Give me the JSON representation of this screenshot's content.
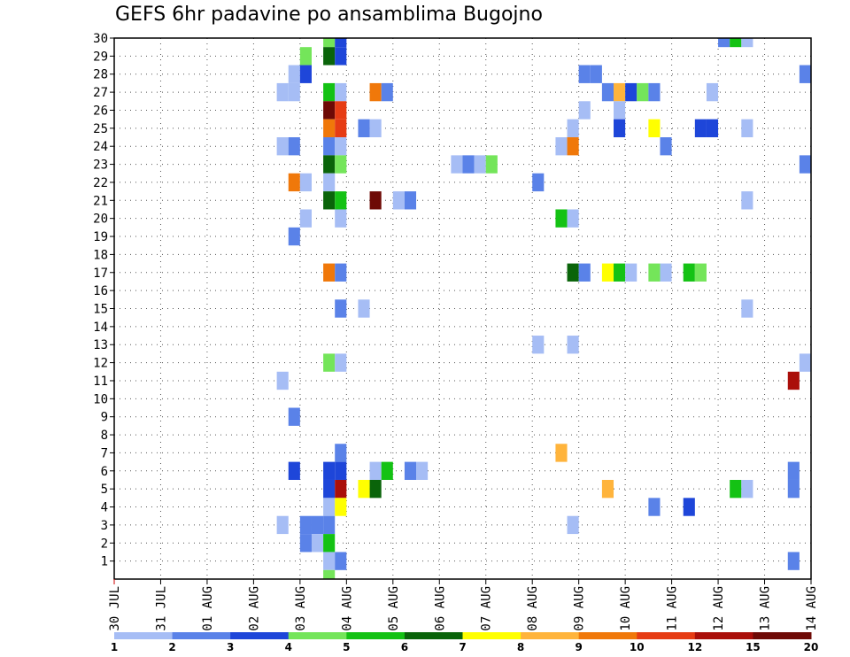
{
  "chart_data": {
    "type": "heatmap",
    "title": "GEFS 6hr padavine po ansamblima Bugojno",
    "xlabel": "",
    "ylabel": "",
    "x_tick_labels": [
      "30 JUL",
      "31 JUL",
      "01 AUG",
      "02 AUG",
      "03 AUG",
      "04 AUG",
      "05 AUG",
      "06 AUG",
      "07 AUG",
      "08 AUG",
      "09 AUG",
      "10 AUG",
      "11 AUG",
      "12 AUG",
      "13 AUG",
      "14 AUG"
    ],
    "y_tick_labels": [
      "1",
      "2",
      "3",
      "4",
      "5",
      "6",
      "7",
      "8",
      "9",
      "10",
      "11",
      "12",
      "13",
      "14",
      "15",
      "16",
      "17",
      "18",
      "19",
      "20",
      "21",
      "22",
      "23",
      "24",
      "25",
      "26",
      "27",
      "28",
      "29",
      "30"
    ],
    "x_range_days": [
      0,
      15
    ],
    "y_range": [
      0,
      30
    ],
    "grid": true,
    "legend_placement": "bottom",
    "colorbar": {
      "labels": [
        "1",
        "2",
        "3",
        "4",
        "5",
        "6",
        "7",
        "8",
        "9",
        "10",
        "12",
        "15",
        "20"
      ],
      "colors": [
        "#a6bdf5",
        "#5a82e8",
        "#1e46d9",
        "#74e55a",
        "#14c214",
        "#0a640a",
        "#ffff00",
        "#ffb43c",
        "#f0780a",
        "#e63c14",
        "#aa0f0a",
        "#6e0a06"
      ]
    },
    "cells_note": "member = ensemble member (y), t = forecast time in days since 30 JUL 00Z, c = colorbar class index",
    "cells": [
      {
        "member": 30,
        "t": 4.75,
        "c": 3
      },
      {
        "member": 30,
        "t": 5.0,
        "c": 2
      },
      {
        "member": 30,
        "t": 13.25,
        "c": 1
      },
      {
        "member": 30,
        "t": 13.5,
        "c": 4
      },
      {
        "member": 30,
        "t": 13.75,
        "c": 0
      },
      {
        "member": 29,
        "t": 4.25,
        "c": 3
      },
      {
        "member": 29,
        "t": 4.75,
        "c": 5
      },
      {
        "member": 29,
        "t": 5.0,
        "c": 2
      },
      {
        "member": 28,
        "t": 4.0,
        "c": 0
      },
      {
        "member": 28,
        "t": 4.25,
        "c": 2
      },
      {
        "member": 28,
        "t": 10.25,
        "c": 1
      },
      {
        "member": 28,
        "t": 10.5,
        "c": 1
      },
      {
        "member": 28,
        "t": 15.0,
        "c": 1
      },
      {
        "member": 27,
        "t": 3.75,
        "c": 0
      },
      {
        "member": 27,
        "t": 4.0,
        "c": 0
      },
      {
        "member": 27,
        "t": 4.75,
        "c": 4
      },
      {
        "member": 27,
        "t": 5.0,
        "c": 0
      },
      {
        "member": 27,
        "t": 5.75,
        "c": 8
      },
      {
        "member": 27,
        "t": 6.0,
        "c": 1
      },
      {
        "member": 27,
        "t": 10.75,
        "c": 1
      },
      {
        "member": 27,
        "t": 11.0,
        "c": 7
      },
      {
        "member": 27,
        "t": 11.25,
        "c": 2
      },
      {
        "member": 27,
        "t": 11.5,
        "c": 3
      },
      {
        "member": 27,
        "t": 11.75,
        "c": 1
      },
      {
        "member": 27,
        "t": 13.0,
        "c": 0
      },
      {
        "member": 26,
        "t": 4.75,
        "c": 11
      },
      {
        "member": 26,
        "t": 5.0,
        "c": 9
      },
      {
        "member": 26,
        "t": 10.25,
        "c": 0
      },
      {
        "member": 26,
        "t": 11.0,
        "c": 0
      },
      {
        "member": 25,
        "t": 4.75,
        "c": 8
      },
      {
        "member": 25,
        "t": 5.0,
        "c": 9
      },
      {
        "member": 25,
        "t": 5.5,
        "c": 1
      },
      {
        "member": 25,
        "t": 5.75,
        "c": 0
      },
      {
        "member": 25,
        "t": 10.0,
        "c": 0
      },
      {
        "member": 25,
        "t": 11.0,
        "c": 2
      },
      {
        "member": 25,
        "t": 11.75,
        "c": 6
      },
      {
        "member": 25,
        "t": 12.75,
        "c": 2
      },
      {
        "member": 25,
        "t": 13.0,
        "c": 2
      },
      {
        "member": 25,
        "t": 13.75,
        "c": 0
      },
      {
        "member": 24,
        "t": 3.75,
        "c": 0
      },
      {
        "member": 24,
        "t": 4.0,
        "c": 1
      },
      {
        "member": 24,
        "t": 4.75,
        "c": 1
      },
      {
        "member": 24,
        "t": 5.0,
        "c": 0
      },
      {
        "member": 24,
        "t": 9.75,
        "c": 0
      },
      {
        "member": 24,
        "t": 10.0,
        "c": 8
      },
      {
        "member": 24,
        "t": 12.0,
        "c": 1
      },
      {
        "member": 23,
        "t": 4.75,
        "c": 5
      },
      {
        "member": 23,
        "t": 5.0,
        "c": 3
      },
      {
        "member": 23,
        "t": 7.5,
        "c": 0
      },
      {
        "member": 23,
        "t": 7.75,
        "c": 1
      },
      {
        "member": 23,
        "t": 8.0,
        "c": 0
      },
      {
        "member": 23,
        "t": 8.25,
        "c": 3
      },
      {
        "member": 23,
        "t": 15.0,
        "c": 1
      },
      {
        "member": 22,
        "t": 4.0,
        "c": 8
      },
      {
        "member": 22,
        "t": 4.25,
        "c": 0
      },
      {
        "member": 22,
        "t": 4.75,
        "c": 0
      },
      {
        "member": 22,
        "t": 9.25,
        "c": 1
      },
      {
        "member": 21,
        "t": 4.75,
        "c": 5
      },
      {
        "member": 21,
        "t": 5.0,
        "c": 4
      },
      {
        "member": 21,
        "t": 5.75,
        "c": 11
      },
      {
        "member": 21,
        "t": 6.25,
        "c": 0
      },
      {
        "member": 21,
        "t": 6.5,
        "c": 1
      },
      {
        "member": 21,
        "t": 13.75,
        "c": 0
      },
      {
        "member": 20,
        "t": 4.25,
        "c": 0
      },
      {
        "member": 20,
        "t": 5.0,
        "c": 0
      },
      {
        "member": 20,
        "t": 9.75,
        "c": 4
      },
      {
        "member": 20,
        "t": 10.0,
        "c": 0
      },
      {
        "member": 19,
        "t": 4.0,
        "c": 1
      },
      {
        "member": 17,
        "t": 4.75,
        "c": 8
      },
      {
        "member": 17,
        "t": 5.0,
        "c": 1
      },
      {
        "member": 17,
        "t": 10.0,
        "c": 5
      },
      {
        "member": 17,
        "t": 10.25,
        "c": 1
      },
      {
        "member": 17,
        "t": 10.75,
        "c": 6
      },
      {
        "member": 17,
        "t": 11.0,
        "c": 4
      },
      {
        "member": 17,
        "t": 11.25,
        "c": 0
      },
      {
        "member": 17,
        "t": 11.75,
        "c": 3
      },
      {
        "member": 17,
        "t": 12.0,
        "c": 0
      },
      {
        "member": 17,
        "t": 12.5,
        "c": 4
      },
      {
        "member": 17,
        "t": 12.75,
        "c": 3
      },
      {
        "member": 15,
        "t": 5.0,
        "c": 1
      },
      {
        "member": 15,
        "t": 5.5,
        "c": 0
      },
      {
        "member": 15,
        "t": 13.75,
        "c": 0
      },
      {
        "member": 13,
        "t": 9.25,
        "c": 0
      },
      {
        "member": 13,
        "t": 10.0,
        "c": 0
      },
      {
        "member": 12,
        "t": 4.75,
        "c": 3
      },
      {
        "member": 12,
        "t": 5.0,
        "c": 0
      },
      {
        "member": 12,
        "t": 15.0,
        "c": 0
      },
      {
        "member": 11,
        "t": 3.75,
        "c": 0
      },
      {
        "member": 11,
        "t": 14.75,
        "c": 10
      },
      {
        "member": 9,
        "t": 4.0,
        "c": 1
      },
      {
        "member": 7,
        "t": 5.0,
        "c": 1
      },
      {
        "member": 7,
        "t": 9.75,
        "c": 7
      },
      {
        "member": 6,
        "t": 4.0,
        "c": 2
      },
      {
        "member": 6,
        "t": 4.75,
        "c": 2
      },
      {
        "member": 6,
        "t": 5.0,
        "c": 2
      },
      {
        "member": 6,
        "t": 5.75,
        "c": 0
      },
      {
        "member": 6,
        "t": 6.0,
        "c": 4
      },
      {
        "member": 6,
        "t": 6.5,
        "c": 1
      },
      {
        "member": 6,
        "t": 6.75,
        "c": 0
      },
      {
        "member": 6,
        "t": 14.75,
        "c": 1
      },
      {
        "member": 5,
        "t": 4.75,
        "c": 2
      },
      {
        "member": 5,
        "t": 5.0,
        "c": 10
      },
      {
        "member": 5,
        "t": 5.5,
        "c": 6
      },
      {
        "member": 5,
        "t": 5.75,
        "c": 5
      },
      {
        "member": 5,
        "t": 10.75,
        "c": 7
      },
      {
        "member": 5,
        "t": 13.5,
        "c": 4
      },
      {
        "member": 5,
        "t": 13.75,
        "c": 0
      },
      {
        "member": 5,
        "t": 14.75,
        "c": 1
      },
      {
        "member": 4,
        "t": 4.75,
        "c": 0
      },
      {
        "member": 4,
        "t": 5.0,
        "c": 6
      },
      {
        "member": 4,
        "t": 11.75,
        "c": 1
      },
      {
        "member": 4,
        "t": 12.5,
        "c": 2
      },
      {
        "member": 3,
        "t": 3.75,
        "c": 0
      },
      {
        "member": 3,
        "t": 4.25,
        "c": 1
      },
      {
        "member": 3,
        "t": 4.5,
        "c": 1
      },
      {
        "member": 3,
        "t": 4.75,
        "c": 1
      },
      {
        "member": 3,
        "t": 10.0,
        "c": 0
      },
      {
        "member": 2,
        "t": 4.25,
        "c": 1
      },
      {
        "member": 2,
        "t": 4.5,
        "c": 0
      },
      {
        "member": 2,
        "t": 4.75,
        "c": 4
      },
      {
        "member": 1,
        "t": 4.75,
        "c": 0
      },
      {
        "member": 1,
        "t": 5.0,
        "c": 1
      },
      {
        "member": 1,
        "t": 14.75,
        "c": 1
      },
      {
        "member": 0,
        "t": 4.75,
        "c": 3
      }
    ]
  }
}
